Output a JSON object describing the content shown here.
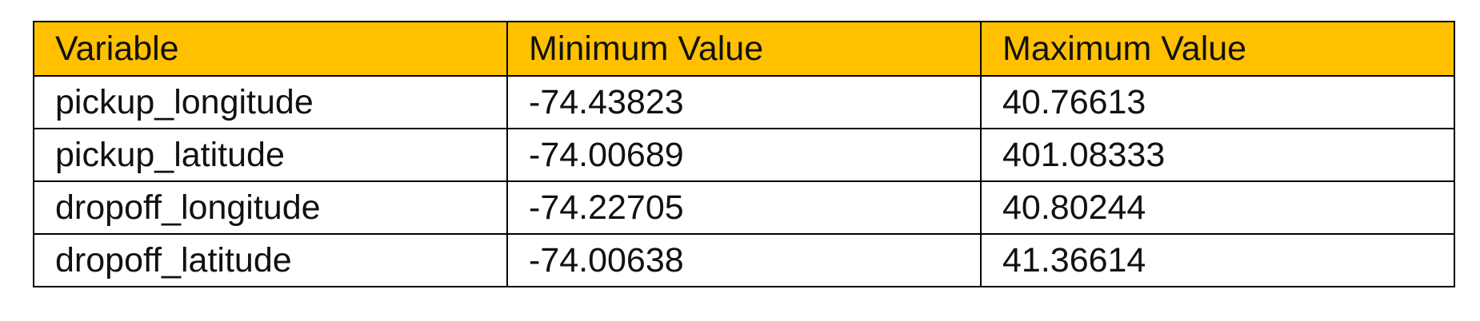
{
  "table": {
    "header_bg": "#ffc000",
    "headers": [
      "Variable",
      "Minimum Value",
      "Maximum Value"
    ],
    "rows": [
      [
        "pickup_longitude",
        "-74.43823",
        "40.76613"
      ],
      [
        "pickup_latitude",
        "-74.00689",
        "401.08333"
      ],
      [
        "dropoff_longitude",
        "-74.22705",
        "40.80244"
      ],
      [
        "dropoff_latitude",
        "-74.00638",
        "41.36614"
      ]
    ]
  }
}
